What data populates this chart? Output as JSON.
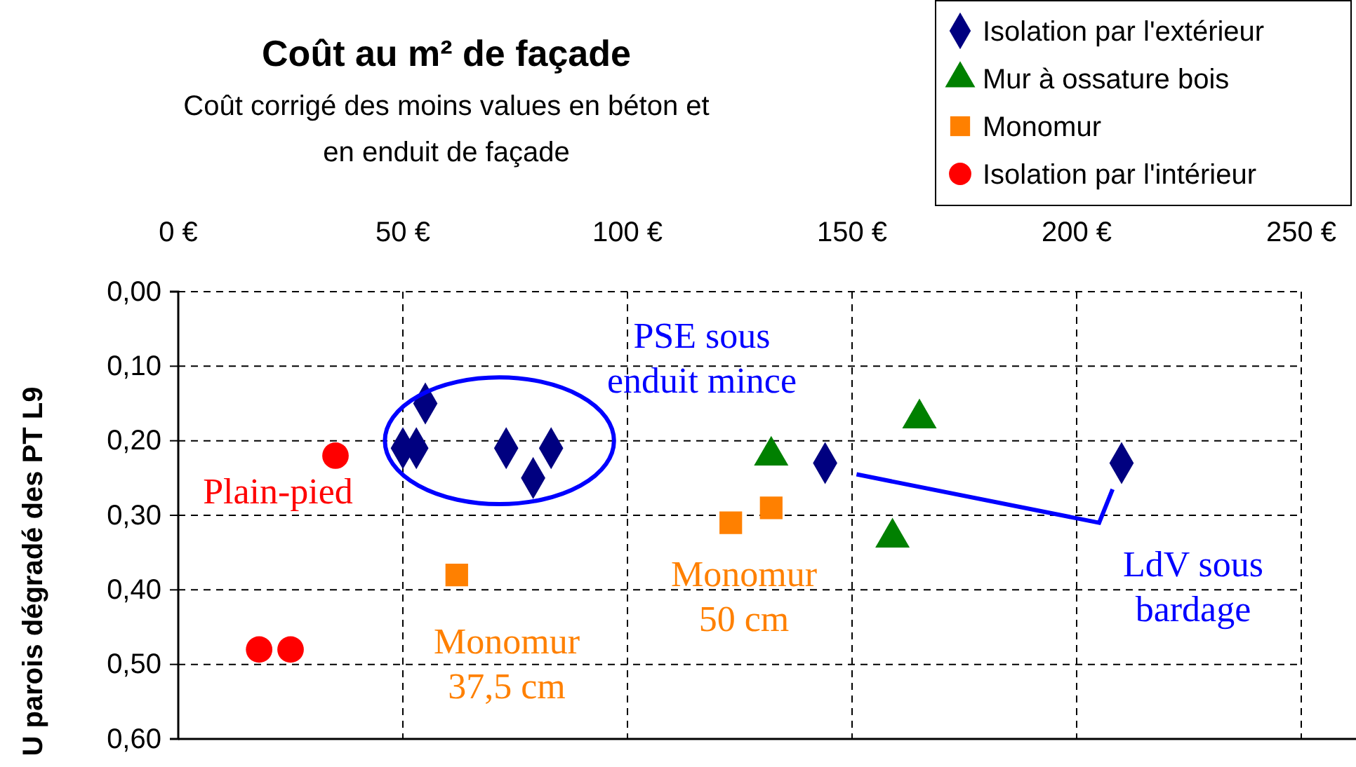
{
  "chart_data": {
    "type": "scatter",
    "title": "Coût au m² de façade",
    "subtitle": "Coût corrigé des moins values en béton et\nen enduit de façade",
    "ylabel": "U parois dégradé des PT L9",
    "xlim": [
      0,
      250
    ],
    "xticks": [
      {
        "value": 0,
        "label": "0 €"
      },
      {
        "value": 50,
        "label": "50 €"
      },
      {
        "value": 100,
        "label": "100 €"
      },
      {
        "value": 150,
        "label": "150 €"
      },
      {
        "value": 200,
        "label": "200 €"
      },
      {
        "value": 250,
        "label": "250 €"
      }
    ],
    "ylim": [
      0.6,
      0
    ],
    "yticks": [
      {
        "value": 0,
        "label": "0,00"
      },
      {
        "value": 0.1,
        "label": "0,10"
      },
      {
        "value": 0.2,
        "label": "0,20"
      },
      {
        "value": 0.3,
        "label": "0,30"
      },
      {
        "value": 0.4,
        "label": "0,40"
      },
      {
        "value": 0.5,
        "label": "0,50"
      },
      {
        "value": 0.6,
        "label": "0,60"
      }
    ],
    "grid": true,
    "legend": "top right",
    "series": [
      {
        "name": "Isolation par l'extérieur",
        "color": "#000080",
        "marker": "diamond",
        "x": [
          50,
          53,
          55,
          73,
          83,
          79,
          144,
          210
        ],
        "values": [
          0.21,
          0.21,
          0.15,
          0.21,
          0.21,
          0.25,
          0.23,
          0.23
        ]
      },
      {
        "name": "Mur à ossature bois",
        "color": "#008000",
        "marker": "triangle",
        "x": [
          132,
          165,
          159
        ],
        "values": [
          0.22,
          0.17,
          0.33
        ]
      },
      {
        "name": "Monomur",
        "color": "#ff8000",
        "marker": "square",
        "x": [
          62,
          123,
          132
        ],
        "values": [
          0.38,
          0.31,
          0.29
        ]
      },
      {
        "name": "Isolation par l'intérieur",
        "color": "#ff0000",
        "marker": "circle",
        "x": [
          35,
          18,
          25
        ],
        "values": [
          0.22,
          0.48,
          0.48
        ]
      }
    ],
    "annotations": [
      "PSE sous\nenduit mince",
      "Plain-pied",
      "Monomur\n37,5 cm",
      "Monomur\n50 cm",
      "LdV sous\nbardage"
    ]
  }
}
